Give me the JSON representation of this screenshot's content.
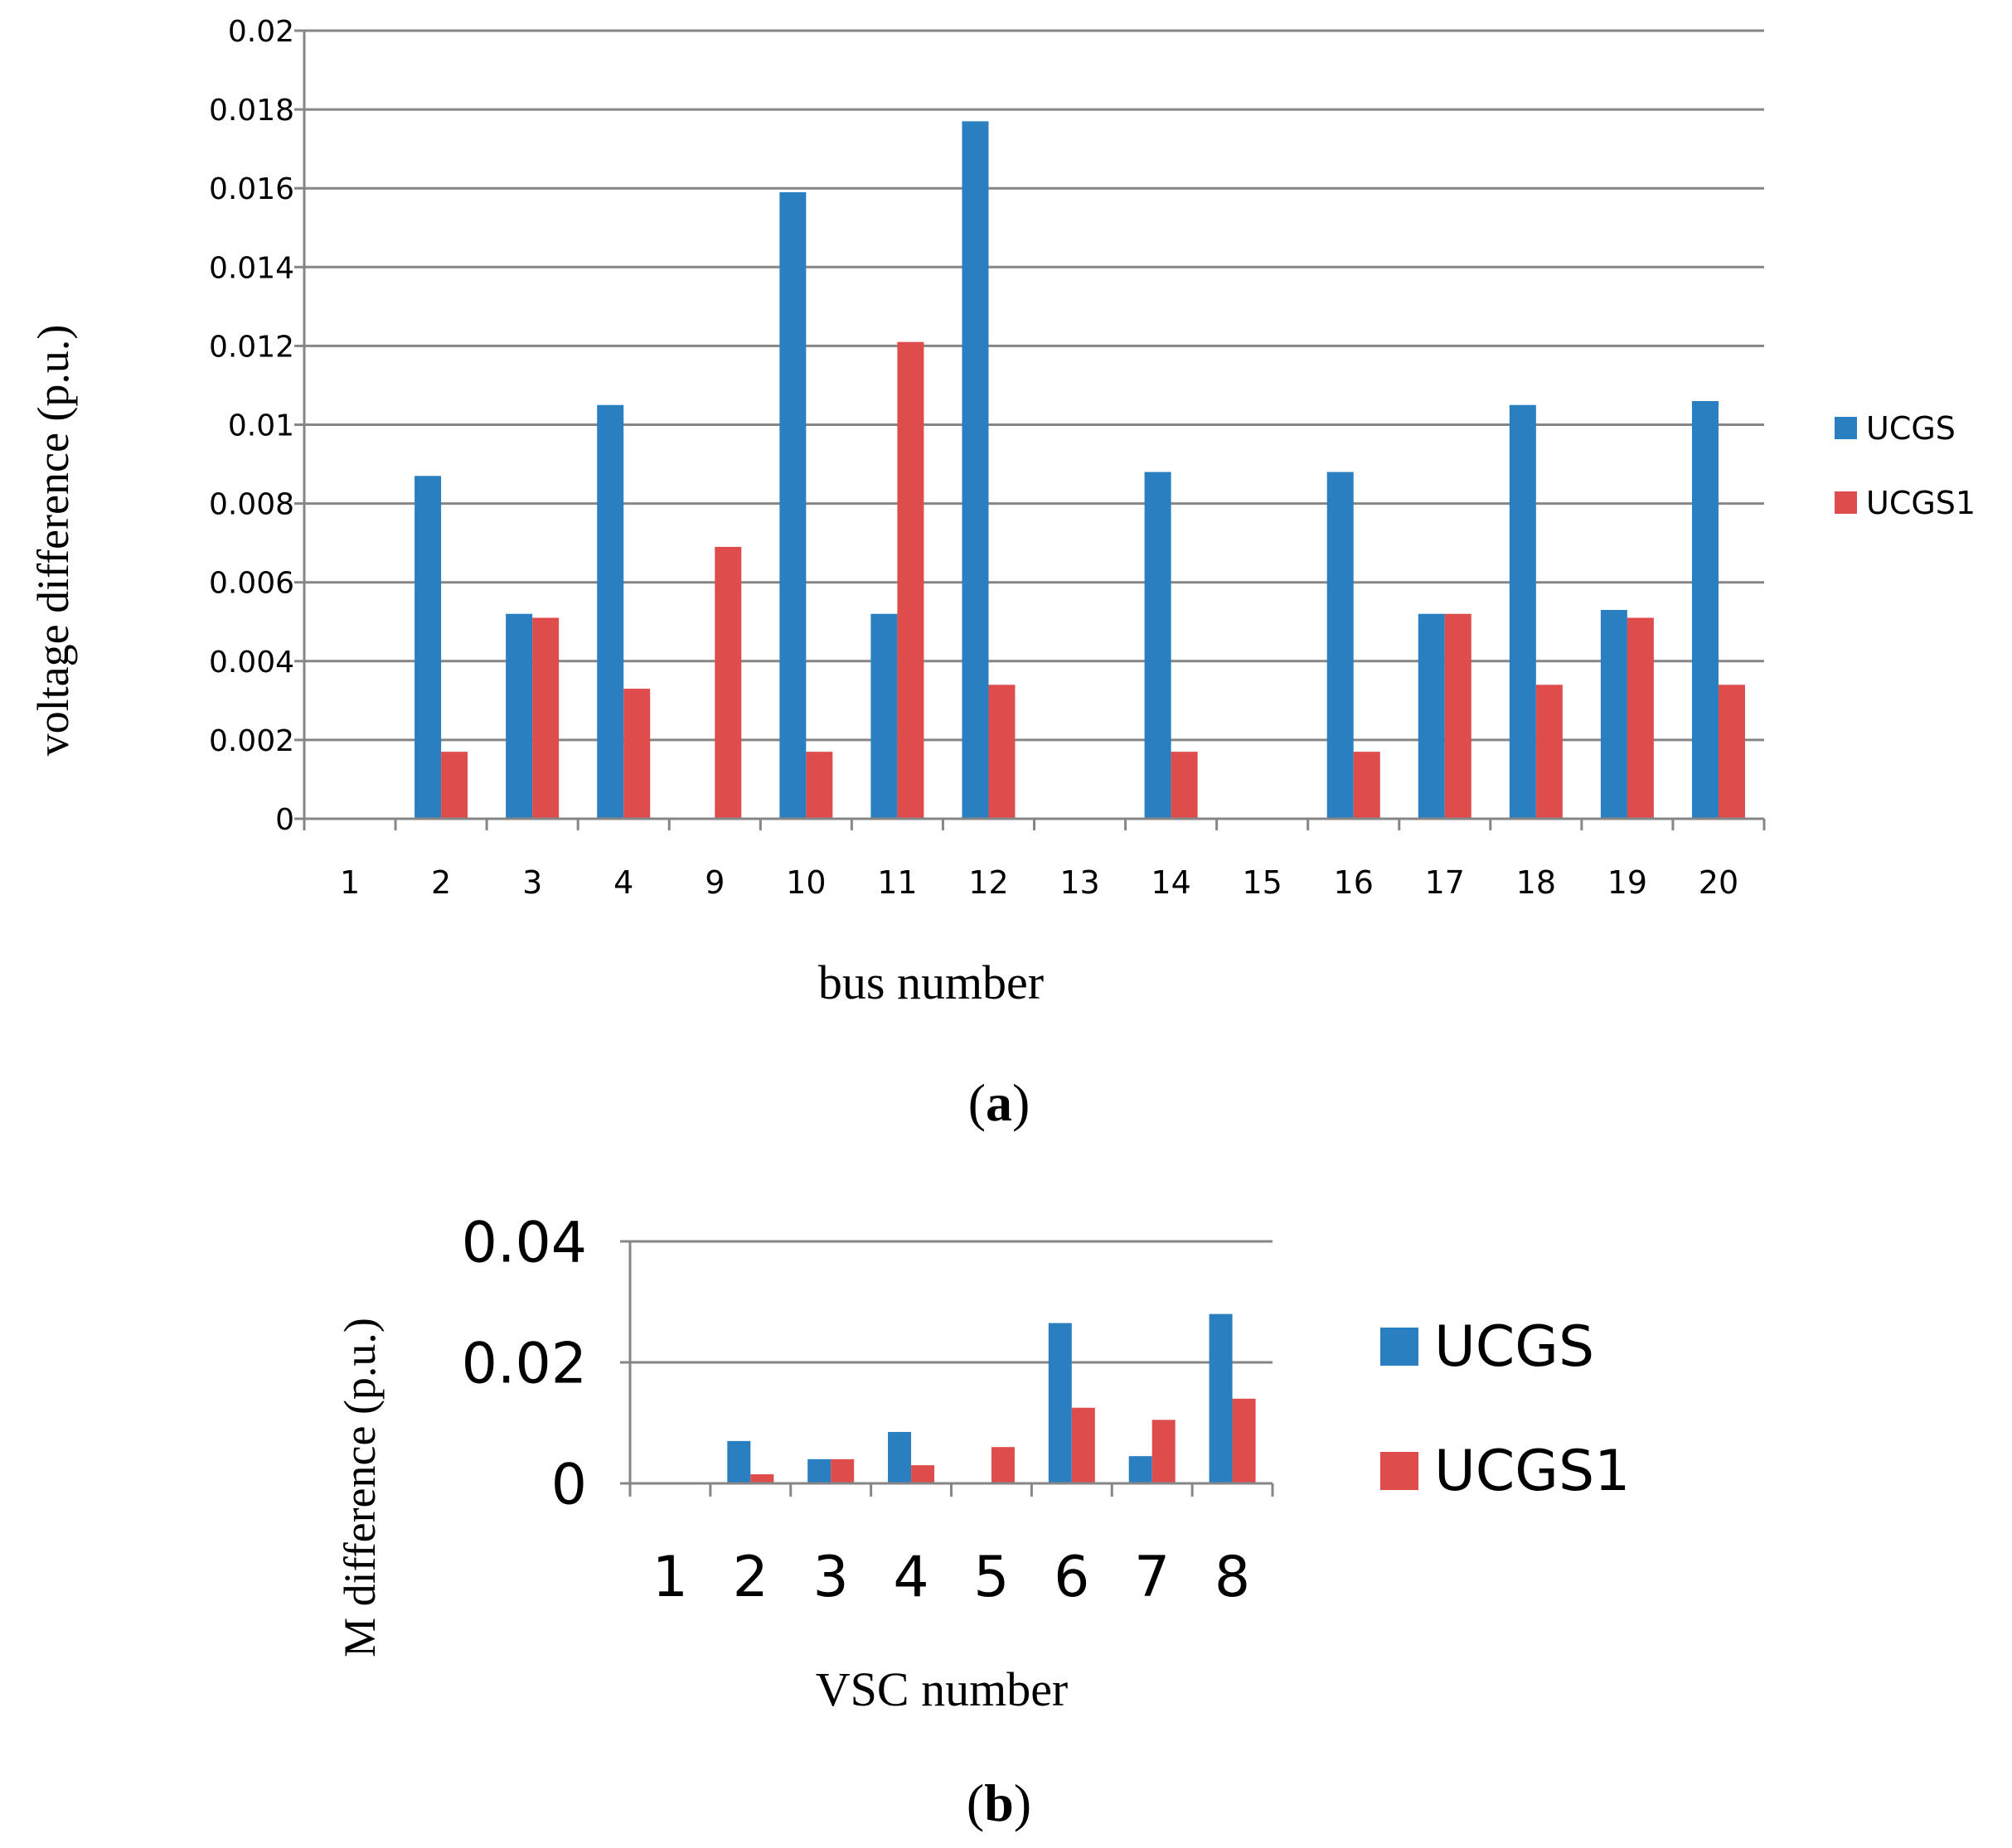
{
  "colors": {
    "ucgs": "#2a7fc1",
    "ucgs1": "#de4c4c",
    "grid": "#868686"
  },
  "chart_data": [
    {
      "type": "bar",
      "panel_label": "a",
      "xlabel": "bus number",
      "ylabel": "voltage difference (p.u.)",
      "ylim": [
        0,
        0.02
      ],
      "yticks": [
        "0",
        "0.002",
        "0.004",
        "0.006",
        "0.008",
        "0.01",
        "0.012",
        "0.014",
        "0.016",
        "0.018",
        "0.02"
      ],
      "categories": [
        "1",
        "2",
        "3",
        "4",
        "9",
        "10",
        "11",
        "12",
        "13",
        "14",
        "15",
        "16",
        "17",
        "18",
        "19",
        "20"
      ],
      "series": [
        {
          "name": "UCGS",
          "values": [
            0,
            0.0087,
            0.0052,
            0.0105,
            0,
            0.0159,
            0.0052,
            0.0177,
            0,
            0.0088,
            0,
            0.0088,
            0.0052,
            0.0105,
            0.0053,
            0.0106
          ]
        },
        {
          "name": "UCGS1",
          "values": [
            0,
            0.0017,
            0.0051,
            0.0033,
            0.0069,
            0.0017,
            0.0121,
            0.0034,
            0,
            0.0017,
            0,
            0.0017,
            0.0052,
            0.0034,
            0.0051,
            0.0034
          ]
        }
      ],
      "legend_position": "right",
      "grid": true
    },
    {
      "type": "bar",
      "panel_label": "b",
      "xlabel": "VSC number",
      "ylabel": "M difference (p.u.)",
      "ylim": [
        0,
        0.04
      ],
      "yticks": [
        "0",
        "0.02",
        "0.04"
      ],
      "categories": [
        "1",
        "2",
        "3",
        "4",
        "5",
        "6",
        "7",
        "8"
      ],
      "series": [
        {
          "name": "UCGS",
          "values": [
            0,
            0.007,
            0.004,
            0.0085,
            0,
            0.0265,
            0.0045,
            0.028
          ]
        },
        {
          "name": "UCGS1",
          "values": [
            0,
            0.0015,
            0.004,
            0.003,
            0.006,
            0.0125,
            0.0105,
            0.014
          ]
        }
      ],
      "legend_position": "right",
      "grid": true
    }
  ]
}
